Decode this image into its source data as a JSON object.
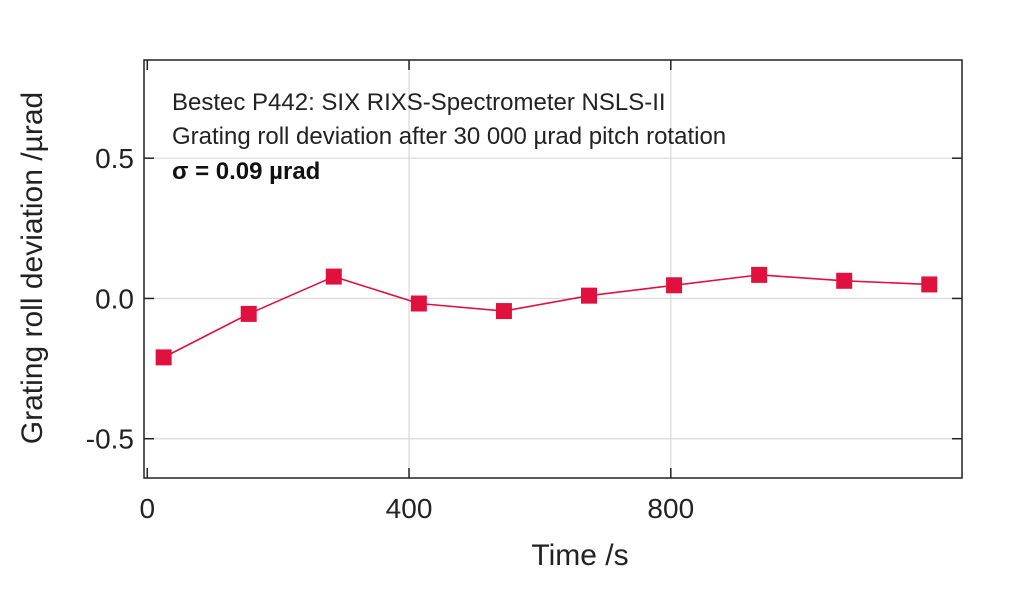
{
  "chart_data": {
    "type": "line",
    "xlabel": "Time /s",
    "ylabel": "Grating roll deviation /µrad",
    "xlim": [
      -5,
      1245
    ],
    "ylim": [
      -0.64,
      0.85
    ],
    "xticks": [
      {
        "value": 0,
        "label": "0"
      },
      {
        "value": 400,
        "label": "400"
      },
      {
        "value": 800,
        "label": "800"
      }
    ],
    "yticks": [
      {
        "value": 0.5,
        "label": "0.5"
      },
      {
        "value": 0.0,
        "label": "0.0"
      },
      {
        "value": -0.5,
        "label": "-0.5"
      }
    ],
    "grid": true,
    "annotations": [
      "Bestec P442: SIX RIXS-Spectrometer NSLS-II",
      "Grating roll deviation after 30 000 µrad pitch rotation",
      "σ  = 0.09 µrad"
    ],
    "series": [
      {
        "color": "#e0103f",
        "marker": "square",
        "x": [
          25,
          155,
          285,
          415,
          545,
          675,
          805,
          935,
          1065,
          1195
        ],
        "y": [
          -0.21,
          -0.055,
          0.078,
          -0.018,
          -0.045,
          0.01,
          0.047,
          0.084,
          0.063,
          0.05
        ]
      }
    ]
  }
}
